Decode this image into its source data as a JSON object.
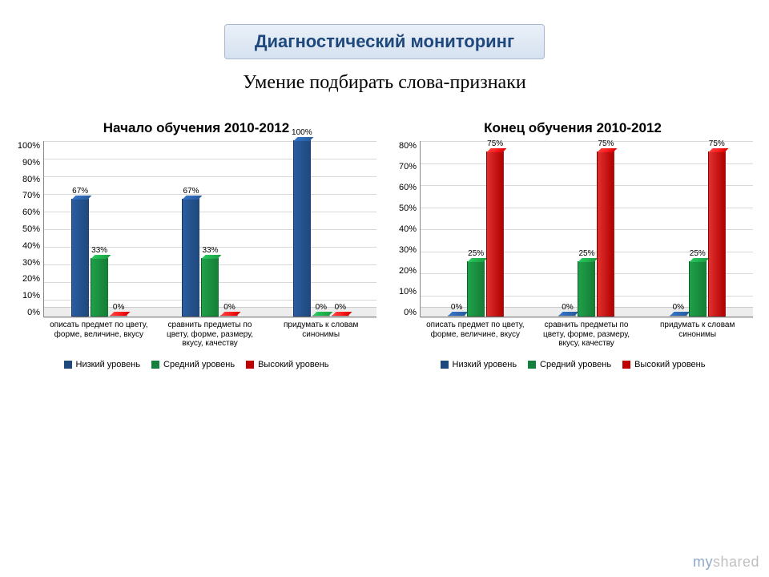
{
  "header": "Диагностический мониторинг",
  "subtitle": "Умение подбирать слова-признаки",
  "watermark_my": "my",
  "watermark_rest": "shared",
  "legend": {
    "low": {
      "label": "Низкий уровень",
      "color": "#1f497d"
    },
    "mid": {
      "label": "Средний уровень",
      "color": "#15803d"
    },
    "high": {
      "label": "Высокий уровень",
      "color": "#c00000"
    }
  },
  "series_colors": {
    "low": "linear-gradient(90deg,#2a5ca0,#1f497d)",
    "mid": "linear-gradient(90deg,#1fa04a,#157f36)",
    "high": "linear-gradient(90deg,#e03030,#b00000)"
  },
  "charts": [
    {
      "title": "Начало обучения 2010-2012",
      "y_max": 100,
      "y_ticks": [
        "100%",
        "90%",
        "80%",
        "70%",
        "60%",
        "50%",
        "40%",
        "30%",
        "20%",
        "10%",
        "0%"
      ],
      "categories": [
        "описать предмет по цвету, форме, величине, вкусу",
        "сравнить предметы по цвету, форме, размеру, вкусу, качеству",
        "придумать к словам синонимы"
      ],
      "data": [
        {
          "low": 67,
          "mid": 33,
          "high": 0
        },
        {
          "low": 67,
          "mid": 33,
          "high": 0
        },
        {
          "low": 100,
          "mid": 0,
          "high": 0
        }
      ],
      "labels": [
        {
          "low": "67%",
          "mid": "33%",
          "high": "0%"
        },
        {
          "low": "67%",
          "mid": "33%",
          "high": "0%"
        },
        {
          "low": "100%",
          "mid": "0%",
          "high": "0%"
        }
      ]
    },
    {
      "title": "Конец обучения 2010-2012",
      "y_max": 80,
      "y_ticks": [
        "80%",
        "70%",
        "60%",
        "50%",
        "40%",
        "30%",
        "20%",
        "10%",
        "0%"
      ],
      "categories": [
        "описать предмет по цвету, форме, величине, вкусу",
        "сравнить предметы по цвету, форме, размеру, вкусу, качеству",
        "придумать к словам синонимы"
      ],
      "data": [
        {
          "low": 0,
          "mid": 25,
          "high": 75
        },
        {
          "low": 0,
          "mid": 25,
          "high": 75
        },
        {
          "low": 0,
          "mid": 25,
          "high": 75
        }
      ],
      "labels": [
        {
          "low": "0%",
          "mid": "25%",
          "high": "75%"
        },
        {
          "low": "0%",
          "mid": "25%",
          "high": "75%"
        },
        {
          "low": "0%",
          "mid": "25%",
          "high": "75%"
        }
      ]
    }
  ]
}
